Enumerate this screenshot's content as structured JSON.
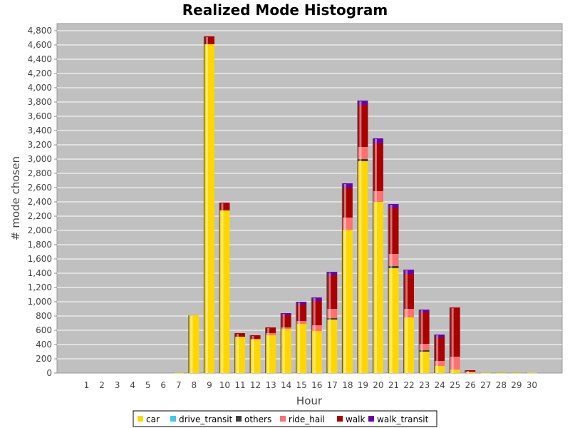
{
  "chart_data": {
    "type": "bar",
    "stacked": true,
    "title": "Realized Mode Histogram",
    "xlabel": "Hour",
    "ylabel": "# mode chosen",
    "ylim": [
      0,
      4900
    ],
    "ytick_step": 200,
    "grid": true,
    "legend_position": "bottom",
    "plot_background": "#c0c0c0",
    "categories": [
      "1",
      "2",
      "3",
      "4",
      "5",
      "6",
      "7",
      "8",
      "9",
      "10",
      "11",
      "12",
      "13",
      "14",
      "15",
      "16",
      "17",
      "18",
      "19",
      "20",
      "21",
      "22",
      "23",
      "24",
      "25",
      "26",
      "27",
      "28",
      "29",
      "30"
    ],
    "series": [
      {
        "name": "car",
        "color": "#ffd700",
        "values": [
          0,
          0,
          0,
          0,
          0,
          0,
          2,
          810,
          4610,
          2280,
          510,
          470,
          530,
          620,
          690,
          590,
          750,
          2010,
          2970,
          2400,
          1470,
          780,
          300,
          100,
          50,
          10,
          2,
          1,
          1,
          5
        ]
      },
      {
        "name": "drive_transit",
        "color": "#40c8f0",
        "values": [
          0,
          0,
          0,
          0,
          0,
          0,
          0,
          0,
          0,
          0,
          0,
          0,
          0,
          0,
          0,
          0,
          0,
          0,
          0,
          0,
          0,
          0,
          0,
          0,
          0,
          0,
          0,
          0,
          0,
          0
        ]
      },
      {
        "name": "others",
        "color": "#404040",
        "values": [
          0,
          0,
          0,
          0,
          0,
          0,
          0,
          0,
          0,
          0,
          0,
          0,
          0,
          0,
          0,
          0,
          20,
          0,
          30,
          0,
          30,
          0,
          20,
          0,
          0,
          0,
          0,
          0,
          0,
          0
        ]
      },
      {
        "name": "ride_hail",
        "color": "#ff7070",
        "values": [
          0,
          0,
          0,
          0,
          0,
          0,
          0,
          0,
          0,
          0,
          0,
          10,
          30,
          20,
          40,
          80,
          130,
          170,
          170,
          150,
          170,
          120,
          90,
          70,
          180,
          10,
          0,
          0,
          0,
          0
        ]
      },
      {
        "name": "walk",
        "color": "#aa0000",
        "values": [
          0,
          0,
          0,
          0,
          0,
          0,
          0,
          0,
          110,
          110,
          50,
          50,
          80,
          170,
          230,
          340,
          470,
          420,
          590,
          670,
          640,
          490,
          440,
          330,
          690,
          20,
          0,
          0,
          0,
          0
        ]
      },
      {
        "name": "walk_transit",
        "color": "#6a00aa",
        "values": [
          0,
          0,
          0,
          0,
          0,
          0,
          0,
          0,
          0,
          0,
          0,
          0,
          0,
          30,
          40,
          50,
          50,
          60,
          60,
          70,
          60,
          60,
          40,
          40,
          0,
          0,
          0,
          0,
          0,
          0
        ]
      }
    ]
  }
}
